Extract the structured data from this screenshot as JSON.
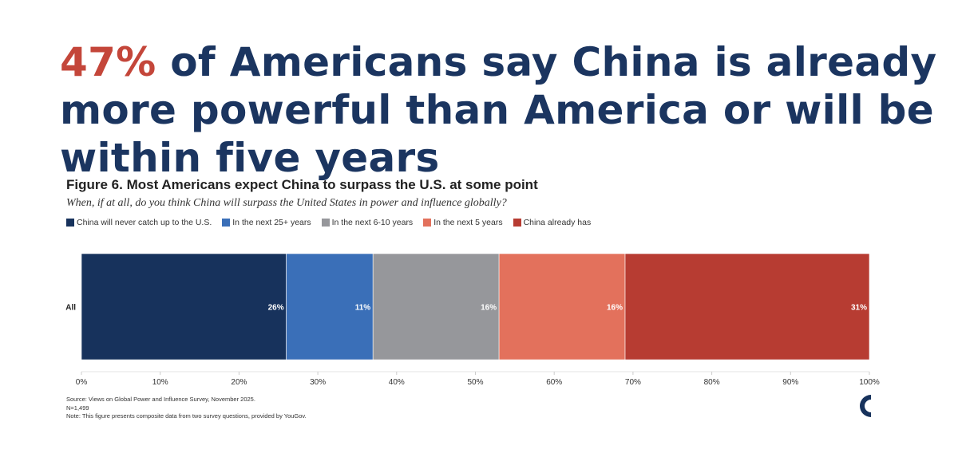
{
  "headline": {
    "highlight": "47%",
    "text": " of Americans say China is already more powerful than America or will be within five years"
  },
  "colors": {
    "headline": "#1b3560",
    "highlight": "#c4463a"
  },
  "chart_data": {
    "type": "bar",
    "orientation": "horizontal",
    "stacked": true,
    "title": "Figure 6. Most Americans expect China to surpass the U.S. at some point",
    "subtitle": "When, if at all, do you think China will surpass the United States in power and influence globally?",
    "categories": [
      "All"
    ],
    "series": [
      {
        "name": "China will never catch up to the U.S.",
        "color": "#17325c",
        "values": [
          26
        ]
      },
      {
        "name": "In the next 25+ years",
        "color": "#3a6fb8",
        "values": [
          11
        ]
      },
      {
        "name": "In the next 6-10 years",
        "color": "#96979b",
        "values": [
          16
        ]
      },
      {
        "name": "In the next 5 years",
        "color": "#e3715c",
        "values": [
          16
        ]
      },
      {
        "name": "China already has",
        "color": "#b73c32",
        "values": [
          31
        ]
      }
    ],
    "data_labels": [
      "26%",
      "11%",
      "16%",
      "16%",
      "31%"
    ],
    "x_ticks": [
      "0%",
      "10%",
      "20%",
      "30%",
      "40%",
      "50%",
      "60%",
      "70%",
      "80%",
      "90%",
      "100%"
    ],
    "xlim": [
      0,
      100
    ],
    "legend_position": "top-left",
    "grid": false
  },
  "notes": {
    "source": "Source: Views on Global Power and Influence Survey, November 2025.",
    "n": "N=1,499",
    "note": "Note: This figure presents composite data from two survey questions, provided by YouGov."
  },
  "logo_icon": "crescent-c-logo-icon"
}
